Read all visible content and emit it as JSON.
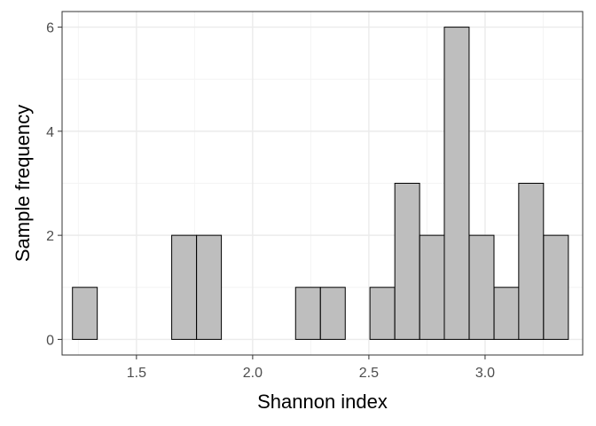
{
  "chart_data": {
    "type": "bar",
    "subtype": "histogram",
    "title": "",
    "xlabel": "Shannon index",
    "ylabel": "Sample frequency",
    "xlim": [
      1.18,
      3.42
    ],
    "ylim": [
      -0.3,
      6.3
    ],
    "x_ticks": [
      1.5,
      2.0,
      2.5,
      3.0
    ],
    "x_tick_labels": [
      "1.5",
      "2.0",
      "2.5",
      "3.0"
    ],
    "y_ticks": [
      0,
      2,
      4,
      6
    ],
    "y_tick_labels": [
      "0",
      "2",
      "4",
      "6"
    ],
    "bin_width": 0.1067,
    "bin_centers": [
      1.278,
      1.385,
      1.492,
      1.598,
      1.705,
      1.812,
      1.918,
      2.025,
      2.132,
      2.238,
      2.345,
      2.452,
      2.558,
      2.665,
      2.772,
      2.878,
      2.985,
      3.092,
      3.198,
      3.305
    ],
    "values": [
      1,
      0,
      0,
      0,
      2,
      2,
      0,
      0,
      0,
      1,
      1,
      0,
      1,
      3,
      2,
      6,
      2,
      1,
      3,
      2
    ],
    "grid": true,
    "legend": "none",
    "colors": {
      "bar_fill": "#bebebe",
      "bar_stroke": "#000000",
      "panel_background": "#ffffff",
      "grid_major": "#ebebeb",
      "grid_minor": "#f4f4f4",
      "panel_border": "#333333"
    }
  }
}
